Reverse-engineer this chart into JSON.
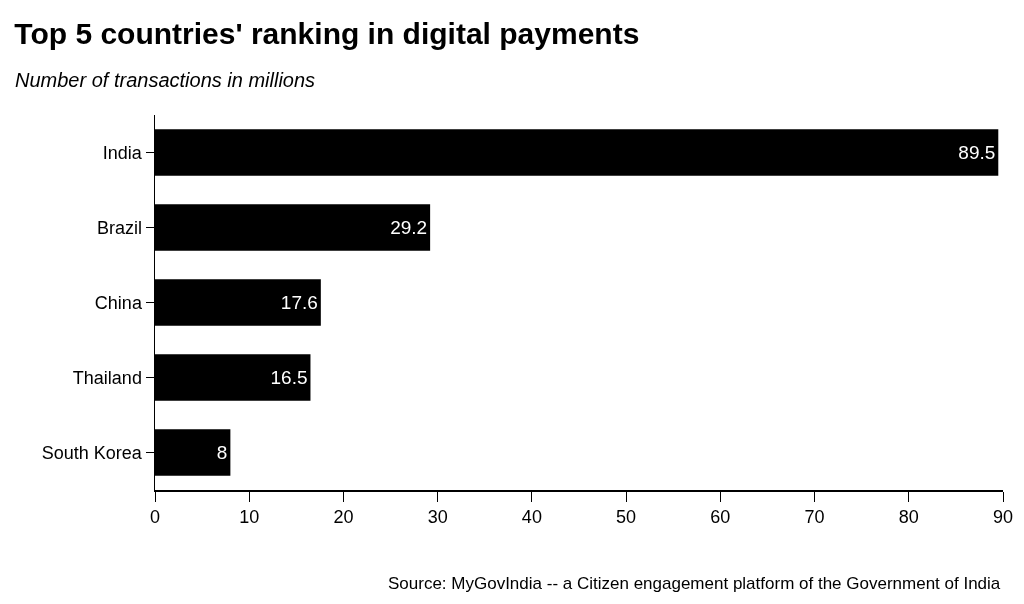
{
  "chart_data": {
    "type": "bar",
    "orientation": "horizontal",
    "title": "Top 5 countries' ranking in digital payments",
    "subtitle": "Number of transactions in millions",
    "categories": [
      "India",
      "Brazil",
      "China",
      "Thailand",
      "South Korea"
    ],
    "values": [
      89.5,
      29.2,
      17.6,
      16.5,
      8
    ],
    "color": "#000000",
    "xlim": [
      0,
      90
    ],
    "xticks": [
      0,
      10,
      20,
      30,
      40,
      50,
      60,
      70,
      80,
      90
    ],
    "grid": false,
    "data_labels": true,
    "annotations": [
      "Source: MyGovIndia -- a Citizen engagement platform of the Government of India"
    ]
  }
}
